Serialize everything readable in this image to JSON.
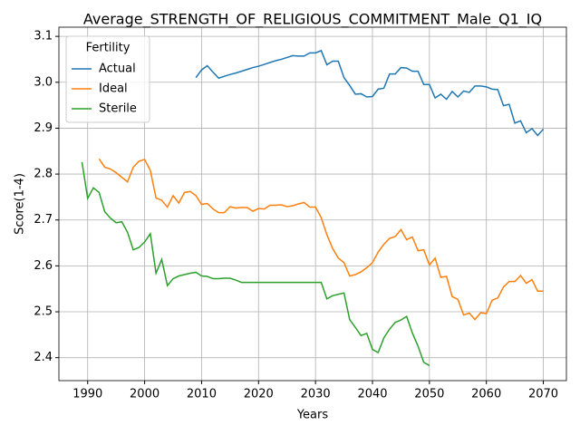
{
  "chart_data": {
    "type": "line",
    "title": "Average_STRENGTH_OF_RELIGIOUS_COMMITMENT_Male_Q1_IQ",
    "xlabel": "Years",
    "ylabel": "Score(1-4)",
    "legend_title": "Fertility",
    "legend": "upper left",
    "grid": true,
    "xlim": [
      1984.95,
      2074.05
    ],
    "ylim": [
      2.35,
      3.12
    ],
    "xticks": [
      1990,
      2000,
      2010,
      2020,
      2030,
      2040,
      2050,
      2060,
      2070
    ],
    "yticks": [
      2.4,
      2.5,
      2.6,
      2.7,
      2.8,
      2.9,
      {
        "value": 3,
        "label": "3.0"
      },
      3.1
    ],
    "x": [
      1989,
      1990,
      1991,
      1992,
      1993,
      1994,
      1995,
      1996,
      1997,
      1998,
      1999,
      2000,
      2001,
      2002,
      2003,
      2004,
      2005,
      2006,
      2007,
      2008,
      2009,
      2010,
      2011,
      2012,
      2013,
      2014,
      2015,
      2016,
      2017,
      2018,
      2019,
      2020,
      2021,
      2022,
      2023,
      2024,
      2025,
      2026,
      2027,
      2028,
      2029,
      2030,
      2031,
      2032,
      2033,
      2034,
      2035,
      2036,
      2037,
      2038,
      2039,
      2040,
      2041,
      2042,
      2043,
      2044,
      2045,
      2046,
      2047,
      2048,
      2049,
      2050,
      2051,
      2052,
      2053,
      2054,
      2055,
      2056,
      2057,
      2058,
      2059,
      2060,
      2061,
      2062,
      2063,
      2064,
      2065,
      2066,
      2067,
      2068,
      2069,
      2070
    ],
    "series": [
      {
        "name": "Actual",
        "color": "#1f77b4",
        "values": [
          null,
          null,
          null,
          null,
          null,
          null,
          null,
          null,
          null,
          null,
          null,
          null,
          null,
          null,
          null,
          null,
          null,
          null,
          null,
          null,
          3.01,
          3.027,
          3.036,
          3.022,
          3.009,
          3.013,
          3.017,
          3.02,
          3.024,
          3.028,
          3.032,
          3.035,
          3.039,
          3.043,
          3.047,
          3.05,
          3.054,
          3.058,
          3.057,
          3.057,
          3.064,
          3.064,
          3.069,
          3.038,
          3.046,
          3.046,
          3.01,
          2.993,
          2.974,
          2.975,
          2.968,
          2.969,
          2.985,
          2.987,
          3.018,
          3.018,
          3.032,
          3.031,
          3.024,
          3.024,
          2.995,
          2.995,
          2.966,
          2.974,
          2.963,
          2.98,
          2.968,
          2.981,
          2.978,
          2.992,
          2.992,
          2.99,
          2.985,
          2.984,
          2.949,
          2.952,
          2.911,
          2.916,
          2.89,
          2.899,
          2.884,
          2.898
        ]
      },
      {
        "name": "Ideal",
        "color": "#ff7f0e",
        "values": [
          null,
          null,
          null,
          2.833,
          2.815,
          2.811,
          2.803,
          2.793,
          2.783,
          2.815,
          2.828,
          2.832,
          2.808,
          2.748,
          2.743,
          2.728,
          2.753,
          2.737,
          2.76,
          2.762,
          2.753,
          2.734,
          2.736,
          2.724,
          2.716,
          2.716,
          2.729,
          2.726,
          2.727,
          2.727,
          2.719,
          2.725,
          2.724,
          2.732,
          2.732,
          2.733,
          2.729,
          2.731,
          2.735,
          2.738,
          2.728,
          2.728,
          2.705,
          2.668,
          2.638,
          2.617,
          2.607,
          2.578,
          2.581,
          2.587,
          2.596,
          2.607,
          2.63,
          2.647,
          2.66,
          2.664,
          2.679,
          2.657,
          2.663,
          2.633,
          2.635,
          2.602,
          2.617,
          2.575,
          2.577,
          2.533,
          2.527,
          2.493,
          2.497,
          2.483,
          2.498,
          2.496,
          2.525,
          2.53,
          2.554,
          2.566,
          2.566,
          2.579,
          2.562,
          2.57,
          2.545,
          2.545
        ]
      },
      {
        "name": "Sterile",
        "color": "#2ca02c",
        "values": [
          2.826,
          2.747,
          2.77,
          2.76,
          2.718,
          2.704,
          2.694,
          2.696,
          2.673,
          2.635,
          2.64,
          2.652,
          2.67,
          2.584,
          2.614,
          2.557,
          2.572,
          2.578,
          2.581,
          2.584,
          2.586,
          2.578,
          2.577,
          2.572,
          2.572,
          2.573,
          2.573,
          2.569,
          2.564,
          2.564,
          2.564,
          2.564,
          2.564,
          2.564,
          2.564,
          2.564,
          2.564,
          2.564,
          2.564,
          2.564,
          2.564,
          2.564,
          2.564,
          2.528,
          2.535,
          2.538,
          2.541,
          2.483,
          2.466,
          2.448,
          2.453,
          2.418,
          2.411,
          2.443,
          2.462,
          2.477,
          2.482,
          2.49,
          2.454,
          2.425,
          2.39,
          2.383,
          null,
          null,
          null,
          null,
          null,
          null,
          null,
          null,
          null,
          null,
          null,
          null,
          null,
          null,
          null,
          null,
          null,
          null,
          null,
          null
        ]
      }
    ]
  }
}
